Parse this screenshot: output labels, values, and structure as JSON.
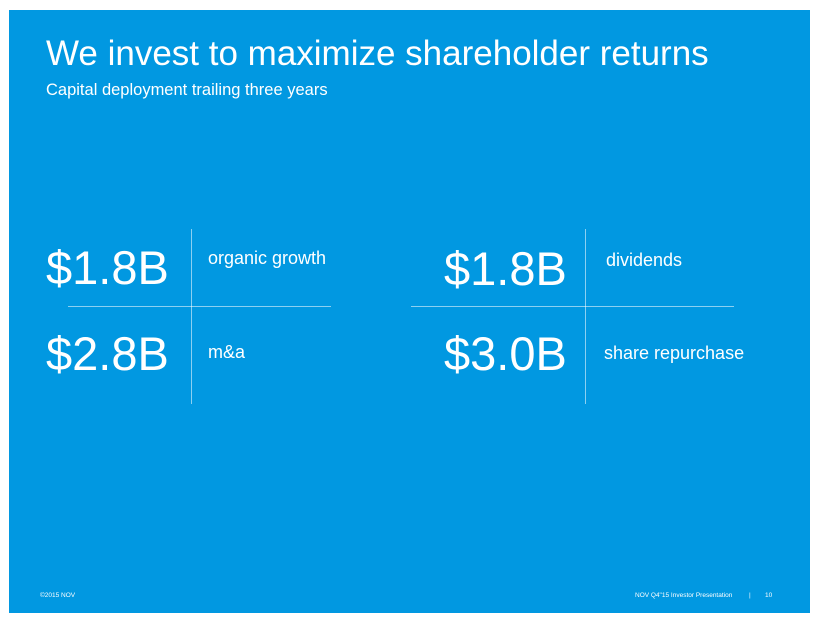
{
  "slide": {
    "title": "We invest to maximize shareholder returns",
    "subtitle": "Capital deployment trailing three years"
  },
  "metrics": {
    "left": [
      {
        "value": "$1.8B",
        "label": "organic growth"
      },
      {
        "value": "$2.8B",
        "label": "m&a"
      }
    ],
    "right": [
      {
        "value": "$1.8B",
        "label": "dividends"
      },
      {
        "value": "$3.0B",
        "label": "share repurchase"
      }
    ]
  },
  "footer": {
    "copyright": "©2015 NOV",
    "presentation": "NOV Q4\"15 Investor Presentation",
    "separator": "|",
    "page_number": "10"
  }
}
